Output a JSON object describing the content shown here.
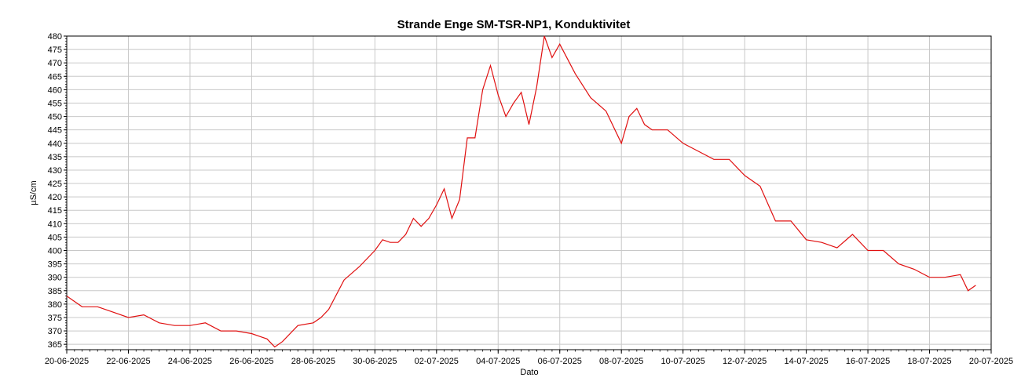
{
  "chart_data": {
    "type": "line",
    "title": "Strande Enge SM-TSR-NP1, Konduktivitet",
    "xlabel": "Dato",
    "ylabel": "µS/cm",
    "ylim": [
      363,
      480
    ],
    "xlim": [
      "2025-06-20",
      "2025-07-20"
    ],
    "grid": true,
    "legend": "none",
    "y_ticks": [
      365,
      370,
      375,
      380,
      385,
      390,
      395,
      400,
      405,
      410,
      415,
      420,
      425,
      430,
      435,
      440,
      445,
      450,
      455,
      460,
      465,
      470,
      475,
      480
    ],
    "x_ticks": [
      "2025-06-20",
      "2025-06-22",
      "2025-06-24",
      "2025-06-26",
      "2025-06-28",
      "2025-06-30",
      "2025-07-02",
      "2025-07-04",
      "2025-07-06",
      "2025-07-08",
      "2025-07-10",
      "2025-07-12",
      "2025-07-14",
      "2025-07-16",
      "2025-07-18",
      "2025-07-20"
    ],
    "x_tick_labels": [
      "20-06-2025",
      "22-06-2025",
      "24-06-2025",
      "26-06-2025",
      "28-06-2025",
      "30-06-2025",
      "02-07-2025",
      "04-07-2025",
      "06-07-2025",
      "08-07-2025",
      "10-07-2025",
      "12-07-2025",
      "14-07-2025",
      "16-07-2025",
      "18-07-2025",
      "20-07-2025"
    ],
    "series": [
      {
        "color": "#e01010",
        "x": [
          "2025-06-20 00:00",
          "2025-06-20 06:00",
          "2025-06-20 12:00",
          "2025-06-21 00:00",
          "2025-06-21 12:00",
          "2025-06-22 00:00",
          "2025-06-22 12:00",
          "2025-06-23 00:00",
          "2025-06-23 12:00",
          "2025-06-24 00:00",
          "2025-06-24 12:00",
          "2025-06-25 00:00",
          "2025-06-25 12:00",
          "2025-06-26 00:00",
          "2025-06-26 06:00",
          "2025-06-26 12:00",
          "2025-06-26 18:00",
          "2025-06-27 00:00",
          "2025-06-27 12:00",
          "2025-06-28 00:00",
          "2025-06-28 06:00",
          "2025-06-28 12:00",
          "2025-06-29 00:00",
          "2025-06-29 12:00",
          "2025-06-30 00:00",
          "2025-06-30 06:00",
          "2025-06-30 12:00",
          "2025-06-30 18:00",
          "2025-07-01 00:00",
          "2025-07-01 06:00",
          "2025-07-01 12:00",
          "2025-07-01 18:00",
          "2025-07-02 00:00",
          "2025-07-02 06:00",
          "2025-07-02 12:00",
          "2025-07-02 18:00",
          "2025-07-03 00:00",
          "2025-07-03 06:00",
          "2025-07-03 12:00",
          "2025-07-03 18:00",
          "2025-07-04 00:00",
          "2025-07-04 06:00",
          "2025-07-04 12:00",
          "2025-07-04 18:00",
          "2025-07-05 00:00",
          "2025-07-05 06:00",
          "2025-07-05 12:00",
          "2025-07-05 18:00",
          "2025-07-06 00:00",
          "2025-07-06 12:00",
          "2025-07-07 00:00",
          "2025-07-07 12:00",
          "2025-07-08 00:00",
          "2025-07-08 06:00",
          "2025-07-08 12:00",
          "2025-07-08 18:00",
          "2025-07-09 00:00",
          "2025-07-09 12:00",
          "2025-07-10 00:00",
          "2025-07-10 12:00",
          "2025-07-11 00:00",
          "2025-07-11 12:00",
          "2025-07-12 00:00",
          "2025-07-12 12:00",
          "2025-07-13 00:00",
          "2025-07-13 12:00",
          "2025-07-14 00:00",
          "2025-07-14 12:00",
          "2025-07-15 00:00",
          "2025-07-15 12:00",
          "2025-07-16 00:00",
          "2025-07-16 12:00",
          "2025-07-17 00:00",
          "2025-07-17 12:00",
          "2025-07-18 00:00",
          "2025-07-18 12:00",
          "2025-07-19 00:00",
          "2025-07-19 06:00",
          "2025-07-19 12:00"
        ],
        "values": [
          383,
          381,
          379,
          379,
          377,
          375,
          376,
          373,
          372,
          372,
          373,
          370,
          370,
          369,
          368,
          367,
          364,
          366,
          372,
          373,
          375,
          378,
          389,
          394,
          400,
          404,
          403,
          403,
          406,
          412,
          409,
          412,
          417,
          423,
          412,
          419,
          442,
          442,
          460,
          469,
          458,
          450,
          455,
          459,
          447,
          461,
          480,
          472,
          477,
          466,
          457,
          452,
          440,
          450,
          453,
          447,
          445,
          445,
          440,
          437,
          434,
          434,
          428,
          424,
          411,
          411,
          404,
          403,
          401,
          406,
          400,
          400,
          395,
          393,
          390,
          390,
          391,
          385,
          387
        ]
      }
    ]
  }
}
